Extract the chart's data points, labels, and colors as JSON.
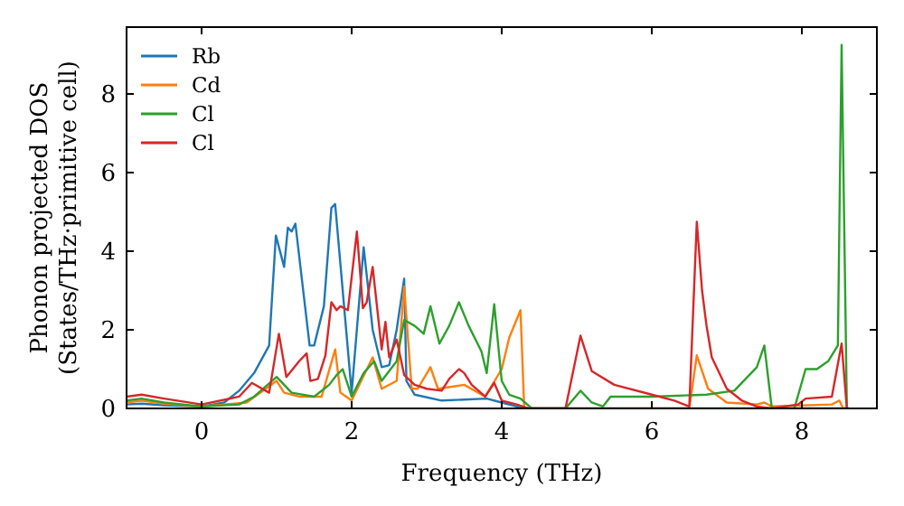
{
  "chart_data": {
    "type": "line",
    "xlabel": "Frequency (THz)",
    "ylabel": "Phonon projected DOS\n(States/THz·primitive cell)",
    "xlim": [
      -1,
      9
    ],
    "ylim": [
      0,
      9.7
    ],
    "xticks": [
      0,
      2,
      4,
      6,
      8
    ],
    "yticks": [
      0,
      2,
      4,
      6,
      8
    ],
    "grid": false,
    "legend": "top left",
    "marker": "none",
    "line_style": "solid",
    "series": [
      {
        "name": "Rb",
        "color": "#1f77b4",
        "x": [
          -1,
          -0.8,
          -0.5,
          0,
          0.3,
          0.5,
          0.7,
          0.9,
          0.99,
          1.1,
          1.15,
          1.2,
          1.25,
          1.44,
          1.5,
          1.63,
          1.73,
          1.78,
          2.0,
          2.16,
          2.28,
          2.4,
          2.5,
          2.6,
          2.7,
          2.73,
          2.84,
          3.2,
          3.8,
          4.0,
          4.2,
          4.3,
          8.62
        ],
        "values": [
          0.1,
          0.12,
          0.08,
          0.05,
          0.15,
          0.45,
          0.9,
          1.6,
          4.4,
          3.6,
          4.6,
          4.5,
          4.7,
          1.6,
          1.6,
          2.6,
          5.1,
          5.2,
          0.4,
          4.1,
          2.0,
          1.05,
          1.1,
          2.0,
          3.3,
          0.7,
          0.35,
          0.2,
          0.25,
          0.15,
          0.05,
          0,
          0
        ]
      },
      {
        "name": "Cd",
        "color": "#ff7f0e",
        "x": [
          -1,
          -0.8,
          -0.5,
          0,
          0.6,
          1.0,
          1.1,
          1.3,
          1.6,
          1.78,
          1.85,
          2.0,
          2.28,
          2.4,
          2.6,
          2.7,
          2.8,
          2.88,
          3.05,
          3.15,
          3.5,
          3.78,
          4.0,
          4.1,
          4.25,
          4.3,
          6.5,
          6.6,
          6.75,
          7.0,
          7.4,
          7.5,
          7.6,
          8.4,
          8.5,
          8.55,
          8.62
        ],
        "values": [
          0.15,
          0.2,
          0.12,
          0.05,
          0.15,
          0.7,
          0.4,
          0.3,
          0.3,
          1.5,
          0.4,
          0.2,
          1.3,
          0.5,
          0.7,
          3.1,
          0.5,
          0.5,
          1.05,
          0.5,
          0.6,
          0.3,
          1.0,
          1.8,
          2.5,
          0,
          0,
          1.35,
          0.5,
          0.15,
          0.1,
          0.15,
          0.05,
          0.1,
          0.2,
          0,
          0
        ]
      },
      {
        "name": "Cl",
        "color": "#2ca02c",
        "x": [
          -1,
          -0.8,
          -0.5,
          0,
          0.5,
          0.7,
          1.0,
          1.2,
          1.5,
          1.7,
          1.8,
          1.88,
          2.0,
          2.16,
          2.3,
          2.4,
          2.6,
          2.7,
          2.84,
          2.96,
          3.05,
          3.17,
          3.3,
          3.43,
          3.56,
          3.73,
          3.8,
          3.9,
          4.0,
          4.1,
          4.25,
          4.4,
          4.85,
          5.05,
          5.2,
          5.35,
          5.45,
          6.0,
          6.73,
          7.1,
          7.4,
          7.5,
          7.6,
          7.9,
          8.05,
          8.2,
          8.35,
          8.48,
          8.53,
          8.6,
          8.62
        ],
        "values": [
          0.2,
          0.25,
          0.15,
          0.05,
          0.1,
          0.3,
          0.8,
          0.4,
          0.3,
          0.6,
          0.85,
          1.0,
          0.3,
          0.9,
          1.2,
          0.7,
          1.2,
          2.25,
          2.1,
          1.9,
          2.6,
          1.65,
          2.1,
          2.7,
          2.1,
          1.45,
          0.9,
          2.65,
          0.7,
          0.35,
          0.25,
          0,
          0,
          0.45,
          0.15,
          0.05,
          0.3,
          0.3,
          0.35,
          0.45,
          1.05,
          1.6,
          0,
          0,
          1.0,
          1.0,
          1.2,
          1.6,
          9.25,
          0,
          0
        ]
      },
      {
        "name": "Cl",
        "color": "#d62728",
        "x": [
          -1,
          -0.8,
          -0.5,
          0,
          0.5,
          0.67,
          0.9,
          1.03,
          1.13,
          1.3,
          1.4,
          1.45,
          1.55,
          1.65,
          1.73,
          1.8,
          1.85,
          1.95,
          2.07,
          2.15,
          2.2,
          2.28,
          2.4,
          2.45,
          2.5,
          2.6,
          2.7,
          2.84,
          3.0,
          3.2,
          3.3,
          3.43,
          3.5,
          3.6,
          3.78,
          3.9,
          4.0,
          4.2,
          4.35,
          4.85,
          5.05,
          5.2,
          5.5,
          6.0,
          6.3,
          6.5,
          6.6,
          6.67,
          6.73,
          6.8,
          7.0,
          7.2,
          7.4,
          7.6,
          7.95,
          8.05,
          8.4,
          8.53,
          8.6,
          8.62
        ],
        "values": [
          0.3,
          0.35,
          0.25,
          0.1,
          0.3,
          0.65,
          0.4,
          1.9,
          0.8,
          1.2,
          1.4,
          0.7,
          0.75,
          1.35,
          2.7,
          2.5,
          2.6,
          2.5,
          4.5,
          2.55,
          2.7,
          3.6,
          1.5,
          2.2,
          1.3,
          1.75,
          0.85,
          0.6,
          0.5,
          0.45,
          0.75,
          1.0,
          0.9,
          0.6,
          0.3,
          0.65,
          0.2,
          0.1,
          0,
          0,
          1.85,
          0.95,
          0.6,
          0.35,
          0.2,
          0.05,
          4.75,
          3.0,
          2.1,
          1.3,
          0.5,
          0.2,
          0.05,
          0,
          0.1,
          0.25,
          0.3,
          1.65,
          0,
          0
        ]
      }
    ]
  }
}
